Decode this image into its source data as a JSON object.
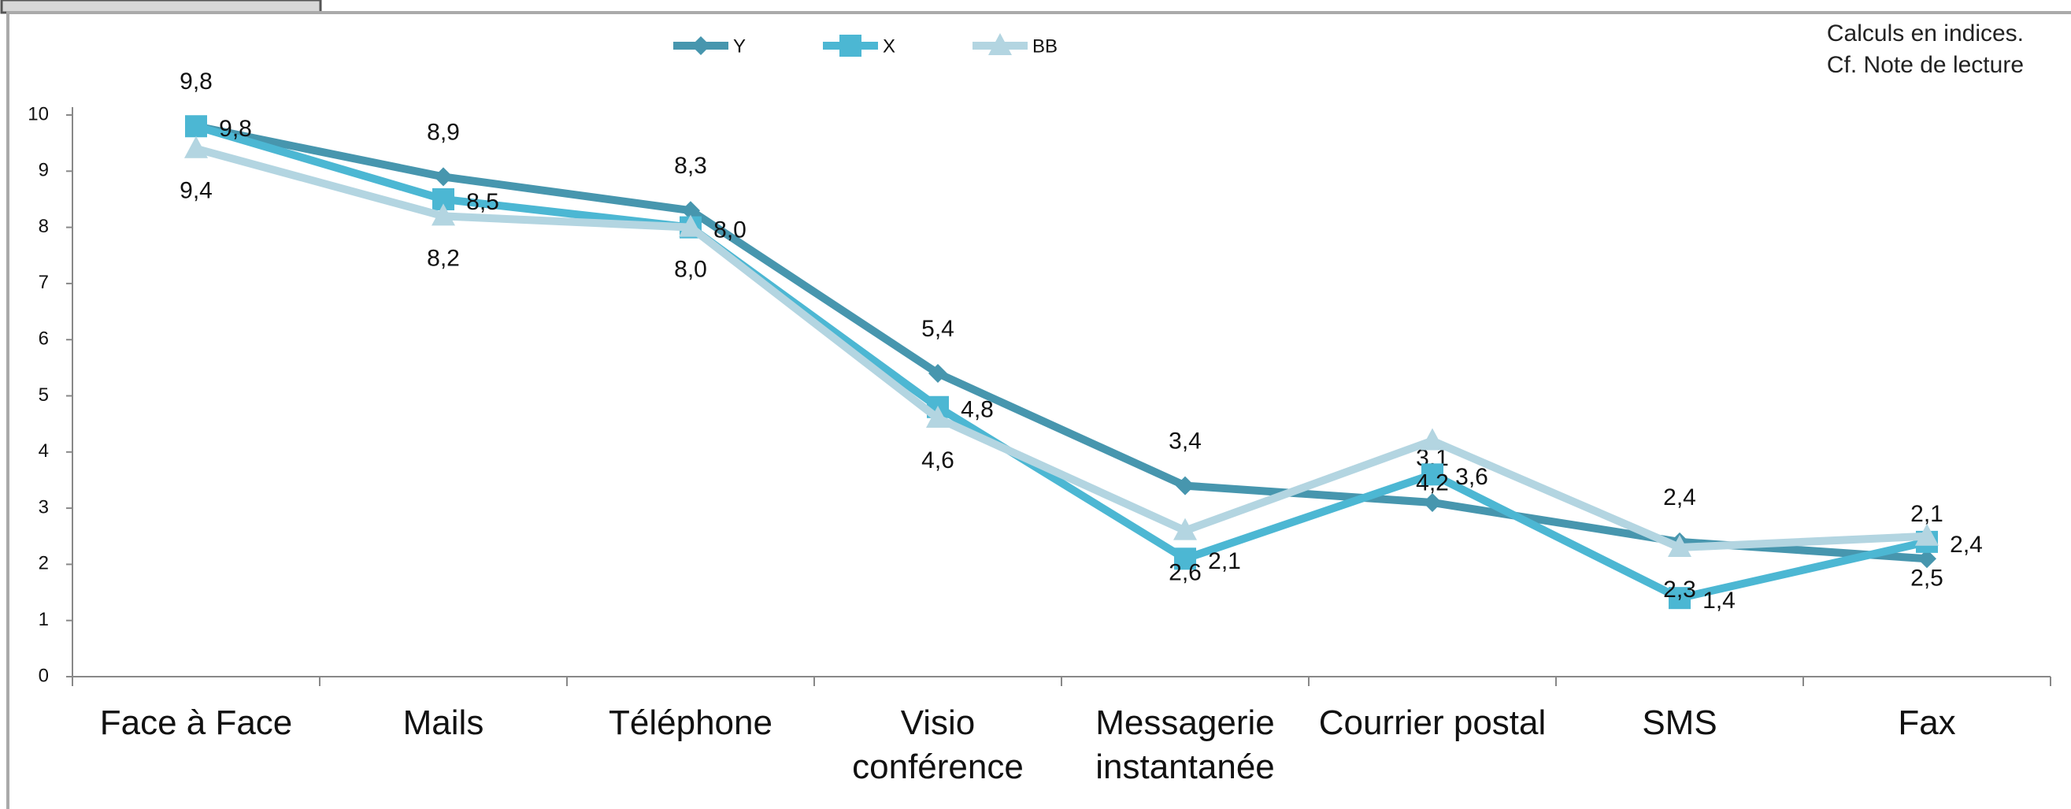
{
  "chart_data": {
    "type": "line",
    "notes": [
      "Calculs en indices.",
      "Cf. Note de lecture"
    ],
    "categories": [
      "Face à Face",
      "Mails",
      "Téléphone",
      "Visio conférence",
      "Messagerie instantanée",
      "Courrier postal",
      "SMS",
      "Fax"
    ],
    "series": [
      {
        "name": "Y",
        "color": "#4796ae",
        "marker": "diamond",
        "values": [
          9.8,
          8.9,
          8.3,
          5.4,
          3.4,
          3.1,
          2.4,
          2.1
        ],
        "value_labels": [
          "9,8",
          "8,9",
          "8,3",
          "5,4",
          "3,4",
          "3,1",
          "2,4",
          "2,1"
        ]
      },
      {
        "name": "X",
        "color": "#4cb7d3",
        "marker": "square",
        "values": [
          9.8,
          8.5,
          8.0,
          4.8,
          2.1,
          3.6,
          1.4,
          2.4
        ],
        "value_labels": [
          "9,8",
          "8,5",
          "8,0",
          "4,8",
          "2,1",
          "3,6",
          "1,4",
          "2,4"
        ]
      },
      {
        "name": "BB",
        "color": "#b3d5e1",
        "marker": "triangle",
        "values": [
          9.4,
          8.2,
          8.0,
          4.6,
          2.6,
          4.2,
          2.3,
          2.5
        ],
        "value_labels": [
          "9,4",
          "8,2",
          "8,0",
          "4,6",
          "2,6",
          "4,2",
          "2,3",
          "2,5"
        ]
      }
    ],
    "ylim": [
      0,
      10
    ],
    "yticks": [
      0,
      1,
      2,
      3,
      4,
      5,
      6,
      7,
      8,
      9,
      10
    ]
  }
}
